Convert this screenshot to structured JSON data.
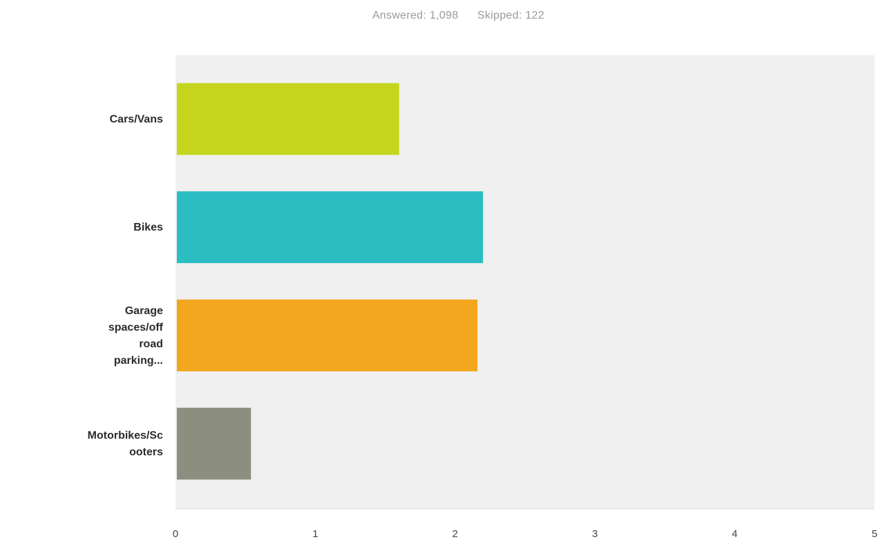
{
  "summary": {
    "answered_label": "Answered:",
    "answered_value": "1,098",
    "skipped_label": "Skipped:",
    "skipped_value": "122"
  },
  "chart_data": {
    "type": "bar",
    "orientation": "horizontal",
    "categories": [
      [
        "Cars/Vans"
      ],
      [
        "Bikes"
      ],
      [
        "Garage",
        "spaces/off",
        "road",
        "parking..."
      ],
      [
        "Motorbikes/Sc",
        "ooters"
      ]
    ],
    "values": [
      1.6,
      2.2,
      2.16,
      0.54
    ],
    "colors": [
      "#c6d61e",
      "#2bbdc2",
      "#f2a71e",
      "#8c8f80"
    ],
    "xlim": [
      0,
      5
    ],
    "xticks": [
      "0",
      "1",
      "2",
      "3",
      "4",
      "5"
    ],
    "grid": false,
    "plot_background": "#f0f0f0"
  }
}
